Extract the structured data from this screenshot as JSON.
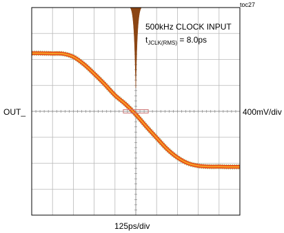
{
  "figure_id": "toc27",
  "channel_label": "OUT_",
  "vertical_scale": "400mV/div",
  "horizontal_scale": "125ps/div",
  "annotation": {
    "line1": "500kHz CLOCK INPUT",
    "param_base": "t",
    "param_sub": "JCLK(RMS)",
    "param_value": " = 8.0ps"
  },
  "chart_data": {
    "type": "line",
    "title": "",
    "xlabel": "125ps/div",
    "ylabel": "400mV/div",
    "x_unit": "div",
    "y_unit": "div",
    "xlim": [
      -5,
      5
    ],
    "ylim": [
      -4,
      4
    ],
    "grid": true,
    "grid_divisions": {
      "x": 10,
      "y": 8
    },
    "series": [
      {
        "color": "#e8501a",
        "trace_type": "persistence",
        "x": [
          -5,
          -4.5,
          -4,
          -3.5,
          -3.0,
          -2.5,
          -2.0,
          -1.5,
          -1.0,
          -0.5,
          0.0,
          0.5,
          1.0,
          1.5,
          2.0,
          2.5,
          3.0,
          3.5,
          4.0,
          4.5,
          5
        ],
        "y": [
          2.24,
          2.24,
          2.23,
          2.22,
          2.1,
          1.82,
          1.45,
          1.05,
          0.62,
          0.28,
          -0.12,
          -0.58,
          -1.02,
          -1.45,
          -1.78,
          -2.0,
          -2.1,
          -2.13,
          -2.13,
          -2.14,
          -2.14
        ]
      }
    ],
    "jitter_histogram": {
      "color": "#8b4513",
      "center_x": 0.0,
      "width_div": 0.28,
      "peak_height_div": 3.1
    },
    "marker_box": {
      "color": "#cc7777",
      "x_range": [
        -0.6,
        0.6
      ],
      "y": 0.0
    }
  }
}
